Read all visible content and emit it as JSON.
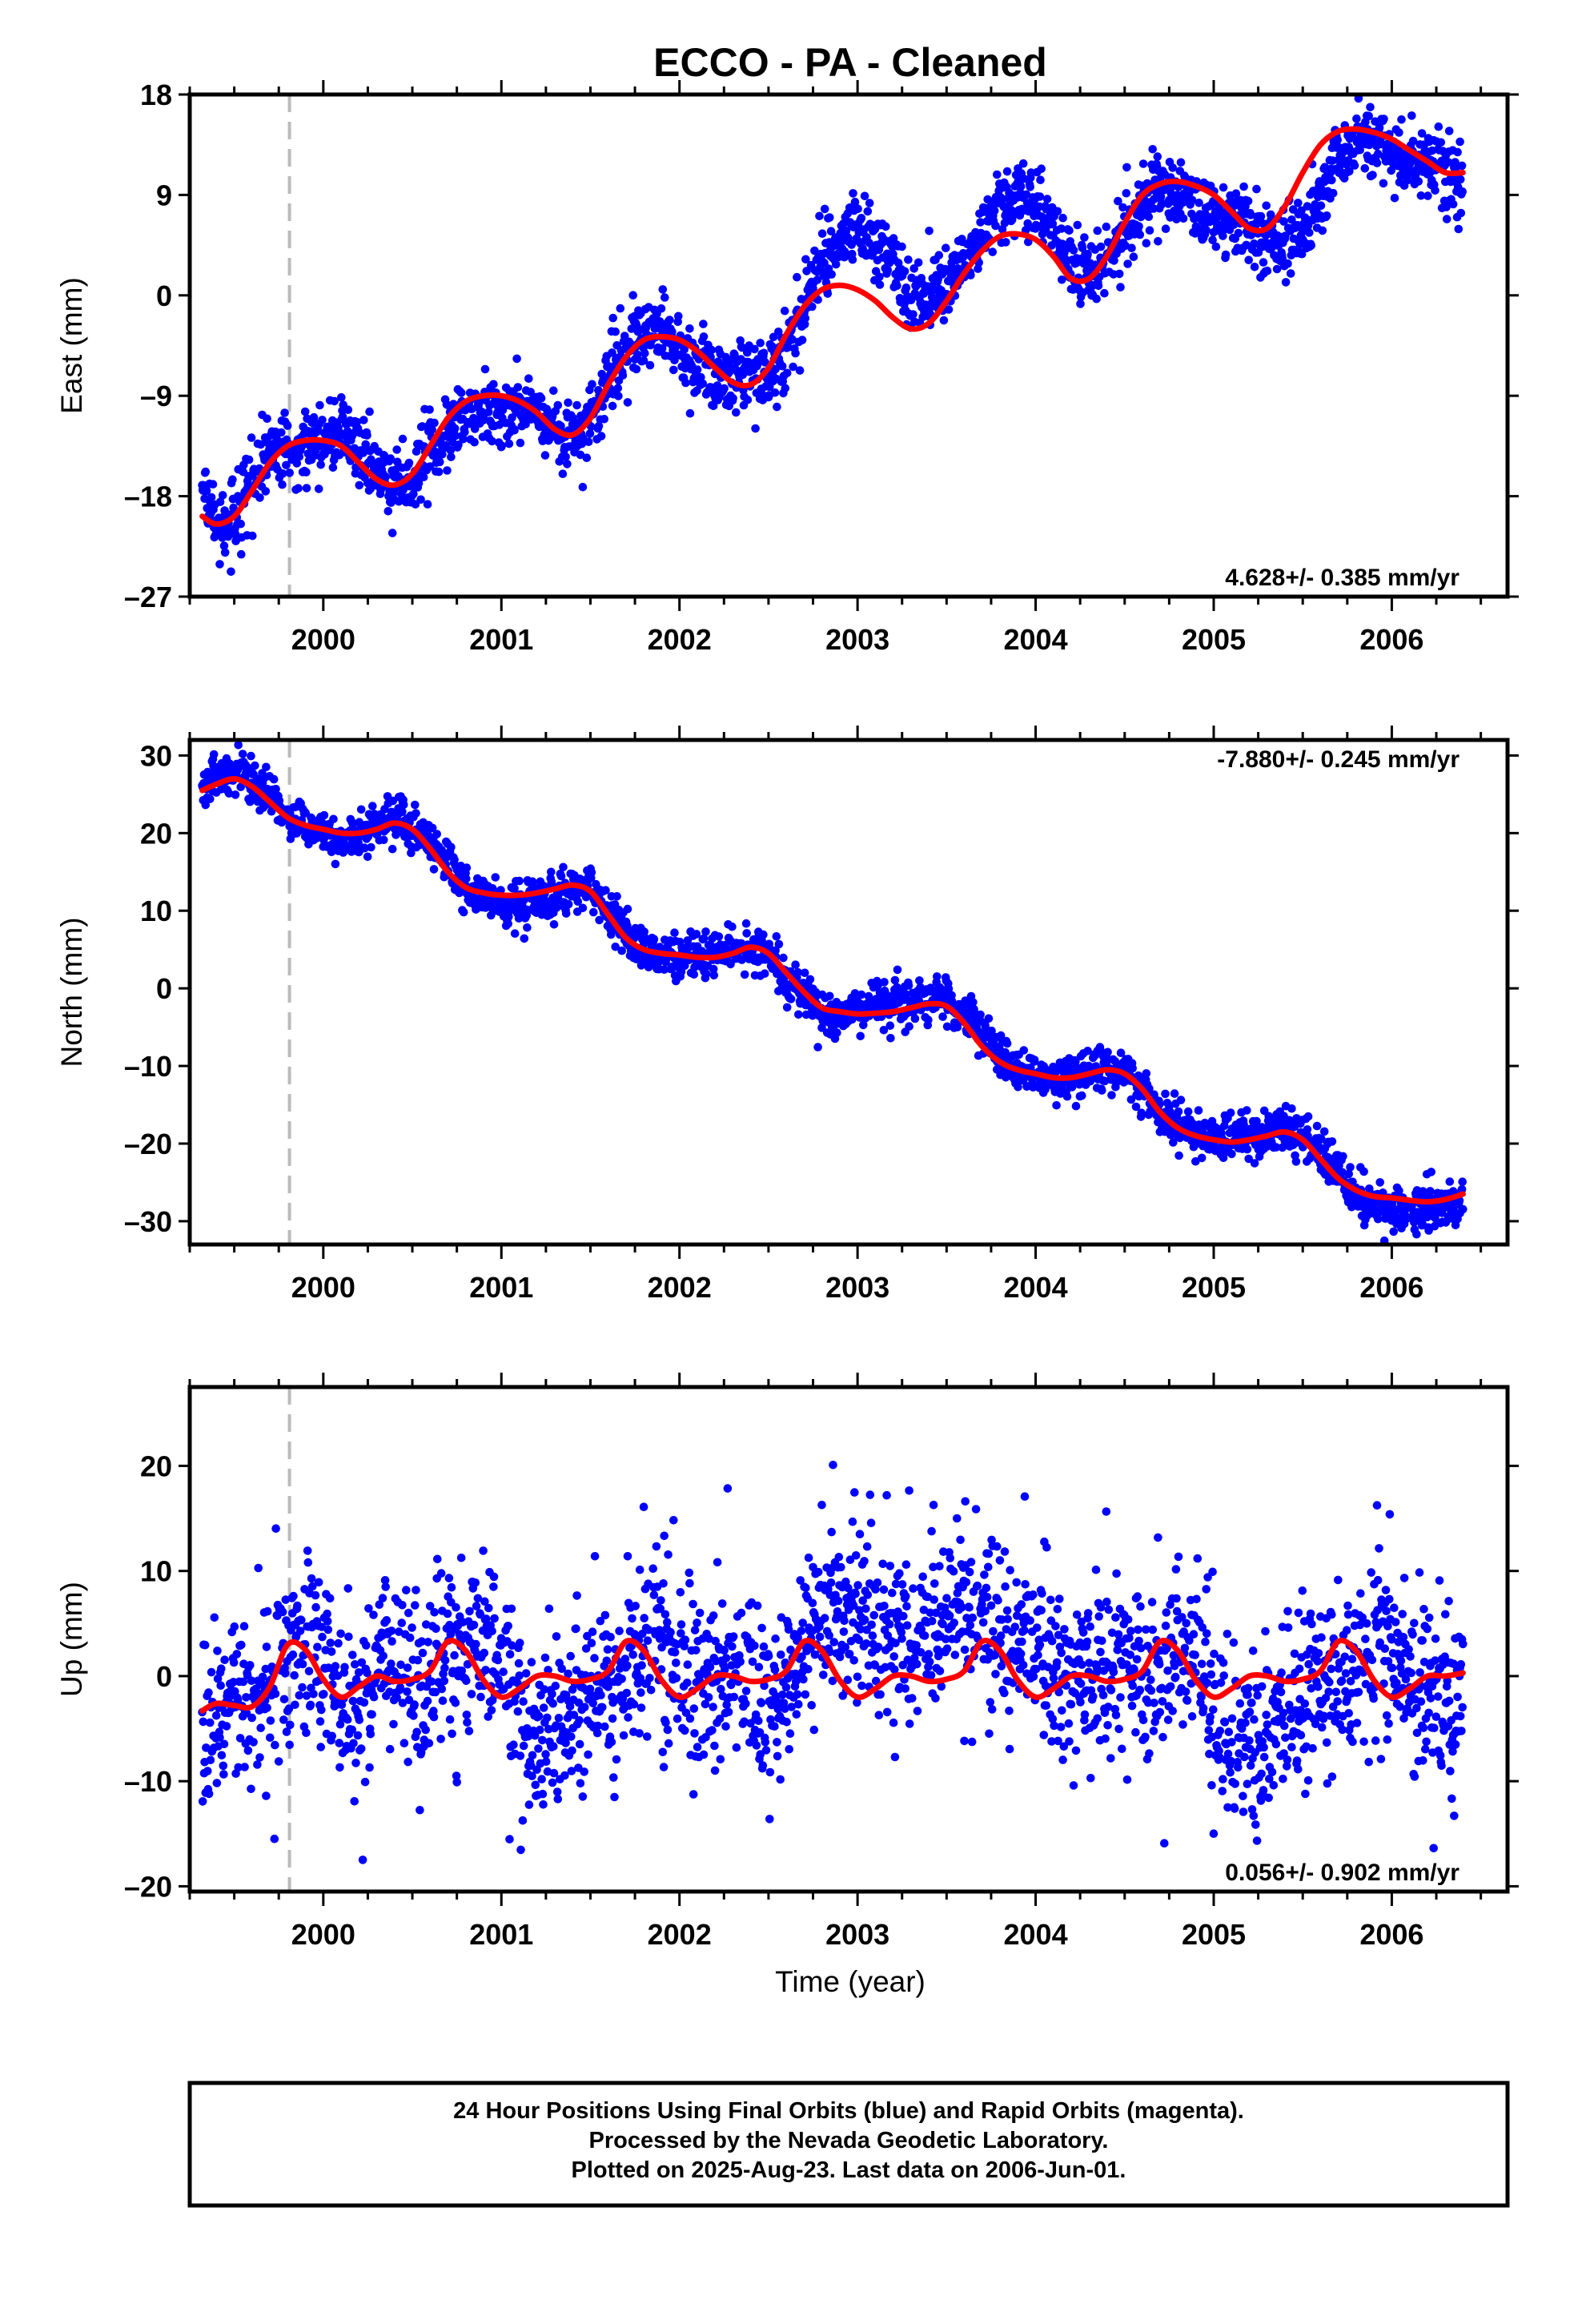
{
  "title": "ECCO  - PA - Cleaned",
  "xlabel": "Time (year)",
  "colors": {
    "points": "#0000ff",
    "fit": "#ff0000",
    "start_marker": "#bbbbbb"
  },
  "footer": {
    "line1": "24 Hour Positions Using Final Orbits (blue) and Rapid Orbits (magenta).",
    "line2": "Processed by the Nevada Geodetic Laboratory.",
    "line3": "Plotted on 2025-Aug-23. Last data on 2006-Jun-01."
  },
  "chart_data": [
    {
      "type": "scatter",
      "component": "east",
      "ylabel": "East (mm)",
      "rate_label": "4.628+/- 0.385 mm/yr",
      "rate_position": "bottom-right",
      "xlim": [
        1999.25,
        2006.65
      ],
      "ylim": [
        -27,
        18
      ],
      "yticks": [
        -27,
        -18,
        -9,
        0,
        9,
        18
      ],
      "xticks": [
        2000,
        2001,
        2002,
        2003,
        2004,
        2005,
        2006
      ],
      "xtick_labels": [
        "2000",
        "2001",
        "2002",
        "2003",
        "2004",
        "2005",
        "2006"
      ],
      "start_marker_x": 1999.81,
      "grid": false,
      "series": [
        {
          "kind": "points",
          "x": [
            1999.32,
            1999.4,
            1999.5,
            1999.6,
            1999.7,
            1999.8,
            1999.9,
            2000.0,
            2000.1,
            2000.2,
            2000.3,
            2000.4,
            2000.5,
            2000.6,
            2000.7,
            2000.8,
            2000.9,
            2001.0,
            2001.1,
            2001.2,
            2001.3,
            2001.4,
            2001.5,
            2001.6,
            2001.7,
            2001.8,
            2001.9,
            2002.0,
            2002.1,
            2002.2,
            2002.3,
            2002.4,
            2002.5,
            2002.6,
            2002.7,
            2002.8,
            2002.9,
            2003.0,
            2003.1,
            2003.2,
            2003.3,
            2003.4,
            2003.5,
            2003.6,
            2003.7,
            2003.8,
            2003.9,
            2004.0,
            2004.1,
            2004.2,
            2004.3,
            2004.4,
            2004.5,
            2004.6,
            2004.7,
            2004.8,
            2004.9,
            2005.0,
            2005.1,
            2005.2,
            2005.3,
            2005.4,
            2005.5,
            2005.6,
            2005.7,
            2005.8,
            2005.9,
            2006.0,
            2006.1,
            2006.2,
            2006.3,
            2006.4
          ],
          "y": [
            -17,
            -21,
            -20,
            -16,
            -14,
            -14,
            -14,
            -13,
            -12,
            -14,
            -16,
            -17,
            -16,
            -14,
            -12,
            -11,
            -10,
            -10,
            -10,
            -11,
            -12,
            -13,
            -11,
            -7,
            -5,
            -3,
            -3,
            -5,
            -6,
            -7,
            -7,
            -7,
            -7,
            -5,
            -1,
            3,
            5,
            6,
            5,
            3,
            0,
            0,
            1,
            3,
            6,
            8,
            9,
            8,
            6,
            3,
            2,
            3,
            6,
            8,
            9,
            9,
            8,
            7,
            7,
            6,
            5,
            5,
            6,
            9,
            12,
            14,
            14,
            13,
            12,
            12,
            11,
            9
          ]
        },
        {
          "kind": "fit_line",
          "x": [
            1999.32,
            1999.4,
            1999.5,
            1999.6,
            1999.7,
            1999.8,
            1999.9,
            2000.0,
            2000.1,
            2000.2,
            2000.3,
            2000.4,
            2000.5,
            2000.6,
            2000.7,
            2000.8,
            2000.9,
            2001.0,
            2001.1,
            2001.2,
            2001.3,
            2001.4,
            2001.5,
            2001.6,
            2001.7,
            2001.8,
            2001.9,
            2002.0,
            2002.1,
            2002.2,
            2002.3,
            2002.4,
            2002.5,
            2002.6,
            2002.7,
            2002.8,
            2002.9,
            2003.0,
            2003.1,
            2003.2,
            2003.3,
            2003.4,
            2003.5,
            2003.6,
            2003.7,
            2003.8,
            2003.9,
            2004.0,
            2004.1,
            2004.2,
            2004.3,
            2004.4,
            2004.5,
            2004.6,
            2004.7,
            2004.8,
            2004.9,
            2005.0,
            2005.1,
            2005.2,
            2005.3,
            2005.4,
            2005.5,
            2005.6,
            2005.7,
            2005.8,
            2005.9,
            2006.0,
            2006.1,
            2006.2,
            2006.3,
            2006.4
          ],
          "y": [
            -19.8,
            -20.5,
            -19.8,
            -17.5,
            -15,
            -13.5,
            -13,
            -13,
            -13.5,
            -15,
            -16.5,
            -17,
            -16,
            -13.5,
            -11,
            -9.5,
            -9,
            -9,
            -9.5,
            -10.5,
            -12,
            -12.5,
            -11,
            -8,
            -5.5,
            -4,
            -3.7,
            -4,
            -5,
            -6.5,
            -7.8,
            -8,
            -6.5,
            -3.5,
            -1,
            0.5,
            0.9,
            0.5,
            -0.5,
            -2,
            -3,
            -2.5,
            -0.5,
            2,
            4,
            5.3,
            5.5,
            5,
            3.5,
            1.5,
            1.5,
            3.5,
            6.5,
            9,
            10,
            10.2,
            9.8,
            9,
            7.5,
            6,
            6,
            8,
            11,
            13.5,
            14.7,
            14.9,
            14.6,
            14,
            13,
            12,
            11,
            11
          ]
        }
      ]
    },
    {
      "type": "scatter",
      "component": "north",
      "ylabel": "North (mm)",
      "rate_label": "-7.880+/- 0.245 mm/yr",
      "rate_position": "top-right",
      "xlim": [
        1999.25,
        2006.65
      ],
      "ylim": [
        -33,
        32
      ],
      "yticks": [
        -30,
        -20,
        -10,
        0,
        10,
        20,
        30
      ],
      "xticks": [
        2000,
        2001,
        2002,
        2003,
        2004,
        2005,
        2006
      ],
      "xtick_labels": [
        "2000",
        "2001",
        "2002",
        "2003",
        "2004",
        "2005",
        "2006"
      ],
      "start_marker_x": 1999.81,
      "grid": false,
      "series": [
        {
          "kind": "points",
          "x": [
            1999.32,
            1999.4,
            1999.5,
            1999.6,
            1999.7,
            1999.8,
            1999.9,
            2000.0,
            2000.1,
            2000.2,
            2000.3,
            2000.4,
            2000.5,
            2000.6,
            2000.7,
            2000.8,
            2000.9,
            2001.0,
            2001.1,
            2001.2,
            2001.3,
            2001.4,
            2001.5,
            2001.6,
            2001.7,
            2001.8,
            2001.9,
            2002.0,
            2002.1,
            2002.2,
            2002.3,
            2002.4,
            2002.5,
            2002.6,
            2002.7,
            2002.8,
            2002.9,
            2003.0,
            2003.1,
            2003.2,
            2003.3,
            2003.4,
            2003.5,
            2003.6,
            2003.7,
            2003.8,
            2003.9,
            2004.0,
            2004.1,
            2004.2,
            2004.3,
            2004.4,
            2004.5,
            2004.6,
            2004.7,
            2004.8,
            2004.9,
            2005.0,
            2005.1,
            2005.2,
            2005.3,
            2005.4,
            2005.5,
            2005.6,
            2005.7,
            2005.8,
            2005.9,
            2006.0,
            2006.1,
            2006.2,
            2006.3,
            2006.4
          ],
          "y": [
            26,
            27,
            28,
            27,
            25,
            22,
            21,
            20,
            19,
            20,
            21,
            22,
            21,
            19,
            16,
            13,
            12,
            11,
            11,
            11,
            12,
            13,
            13,
            10,
            7,
            5,
            4,
            4,
            4,
            4,
            5,
            5,
            4,
            1,
            -1,
            -3,
            -3,
            -3,
            -2,
            -2,
            -2,
            -1,
            -1,
            -3,
            -6,
            -9,
            -11,
            -11,
            -12,
            -11,
            -11,
            -10,
            -11,
            -13,
            -16,
            -18,
            -19,
            -19,
            -19,
            -19,
            -19,
            -18,
            -19,
            -21,
            -24,
            -27,
            -28,
            -28,
            -29,
            -28,
            -28,
            -27
          ]
        },
        {
          "kind": "fit_line",
          "x": [
            1999.32,
            1999.4,
            1999.5,
            1999.6,
            1999.7,
            1999.8,
            1999.9,
            2000.0,
            2000.1,
            2000.2,
            2000.3,
            2000.4,
            2000.5,
            2000.6,
            2000.7,
            2000.8,
            2000.9,
            2001.0,
            2001.1,
            2001.2,
            2001.3,
            2001.4,
            2001.5,
            2001.6,
            2001.7,
            2001.8,
            2001.9,
            2002.0,
            2002.1,
            2002.2,
            2002.3,
            2002.4,
            2002.5,
            2002.6,
            2002.7,
            2002.8,
            2002.9,
            2003.0,
            2003.1,
            2003.2,
            2003.3,
            2003.4,
            2003.5,
            2003.6,
            2003.7,
            2003.8,
            2003.9,
            2004.0,
            2004.1,
            2004.2,
            2004.3,
            2004.4,
            2004.5,
            2004.6,
            2004.7,
            2004.8,
            2004.9,
            2005.0,
            2005.1,
            2005.2,
            2005.3,
            2005.4,
            2005.5,
            2005.6,
            2005.7,
            2005.8,
            2005.9,
            2006.0,
            2006.1,
            2006.2,
            2006.3,
            2006.4
          ],
          "y": [
            25.5,
            26.3,
            27,
            26,
            24,
            22,
            21,
            20.5,
            20,
            20,
            20.5,
            21.3,
            20.5,
            18,
            15,
            13,
            12.3,
            12,
            12,
            12.3,
            12.8,
            13.3,
            12.5,
            9.5,
            6.5,
            5,
            4.5,
            4.3,
            4,
            4,
            4.5,
            5.3,
            4.5,
            2,
            -0.5,
            -2.5,
            -3,
            -3.3,
            -3.2,
            -3,
            -2.5,
            -2,
            -2.3,
            -4.5,
            -7.5,
            -9.5,
            -10.5,
            -11,
            -11.5,
            -11.5,
            -11,
            -10.5,
            -11,
            -13,
            -16,
            -18,
            -19,
            -19.5,
            -19.8,
            -19.5,
            -19,
            -18.5,
            -19.5,
            -22,
            -24.5,
            -26,
            -26.8,
            -27,
            -27.3,
            -27.5,
            -27.2,
            -26.5
          ]
        }
      ]
    },
    {
      "type": "scatter",
      "component": "up",
      "ylabel": "Up (mm)",
      "rate_label": "0.056+/- 0.902 mm/yr",
      "rate_position": "bottom-right",
      "xlim": [
        1999.25,
        2006.65
      ],
      "ylim": [
        -20.5,
        27.5
      ],
      "yticks": [
        -20,
        -10,
        0,
        10,
        20
      ],
      "xticks": [
        2000,
        2001,
        2002,
        2003,
        2004,
        2005,
        2006
      ],
      "xtick_labels": [
        "2000",
        "2001",
        "2002",
        "2003",
        "2004",
        "2005",
        "2006"
      ],
      "start_marker_x": 1999.81,
      "grid": false,
      "series": [
        {
          "kind": "points",
          "x": [
            1999.32,
            1999.4,
            1999.5,
            1999.6,
            1999.7,
            1999.8,
            1999.9,
            2000.0,
            2000.1,
            2000.2,
            2000.3,
            2000.4,
            2000.5,
            2000.6,
            2000.7,
            2000.8,
            2000.9,
            2001.0,
            2001.1,
            2001.2,
            2001.3,
            2001.4,
            2001.5,
            2001.6,
            2001.7,
            2001.8,
            2001.9,
            2002.0,
            2002.1,
            2002.2,
            2002.3,
            2002.4,
            2002.5,
            2002.6,
            2002.7,
            2002.8,
            2002.9,
            2003.0,
            2003.1,
            2003.2,
            2003.3,
            2003.4,
            2003.5,
            2003.6,
            2003.7,
            2003.8,
            2003.9,
            2004.0,
            2004.1,
            2004.2,
            2004.3,
            2004.4,
            2004.5,
            2004.6,
            2004.7,
            2004.8,
            2004.9,
            2005.0,
            2005.1,
            2005.2,
            2005.3,
            2005.4,
            2005.5,
            2005.6,
            2005.7,
            2005.8,
            2005.9,
            2006.0,
            2006.1,
            2006.2,
            2006.3,
            2006.4
          ],
          "y": [
            -5,
            -3,
            -2,
            -2,
            -1,
            2,
            3,
            1,
            -3,
            -4,
            0,
            1,
            -1,
            0,
            2,
            3,
            4,
            1,
            -4,
            -6,
            -5,
            -3,
            -2,
            -2,
            0,
            3,
            4,
            2,
            -1,
            -1,
            1,
            -1,
            -4,
            -1,
            3,
            6,
            7,
            6,
            5,
            3,
            2,
            4,
            5,
            6,
            6,
            5,
            4,
            3,
            1,
            -1,
            0,
            1,
            1,
            0,
            0,
            2,
            1,
            -4,
            -7,
            -6,
            -5,
            -4,
            -2,
            -1,
            1,
            2,
            3,
            2,
            0,
            -1,
            -2,
            -3
          ]
        },
        {
          "kind": "fit_line",
          "x": [
            1999.32,
            1999.4,
            1999.5,
            1999.6,
            1999.7,
            1999.8,
            1999.9,
            2000.0,
            2000.1,
            2000.2,
            2000.3,
            2000.4,
            2000.5,
            2000.6,
            2000.7,
            2000.8,
            2000.9,
            2001.0,
            2001.1,
            2001.2,
            2001.3,
            2001.4,
            2001.5,
            2001.6,
            2001.7,
            2001.8,
            2001.9,
            2002.0,
            2002.1,
            2002.2,
            2002.3,
            2002.4,
            2002.5,
            2002.6,
            2002.7,
            2002.8,
            2002.9,
            2003.0,
            2003.1,
            2003.2,
            2003.3,
            2003.4,
            2003.5,
            2003.6,
            2003.7,
            2003.8,
            2003.9,
            2004.0,
            2004.1,
            2004.2,
            2004.3,
            2004.4,
            2004.5,
            2004.6,
            2004.7,
            2004.8,
            2004.9,
            2005.0,
            2005.1,
            2005.2,
            2005.3,
            2005.4,
            2005.5,
            2005.6,
            2005.7,
            2005.8,
            2005.9,
            2006.0,
            2006.1,
            2006.2,
            2006.3,
            2006.4
          ],
          "y": [
            -3.3,
            -2.6,
            -2.8,
            -2.9,
            -1,
            3,
            2.5,
            -0.3,
            -2,
            -1,
            0,
            -0.5,
            -0.3,
            0.5,
            3.3,
            2.4,
            -0.4,
            -2,
            -1.2,
            0,
            0,
            -0.5,
            -0.3,
            0.5,
            3.3,
            2.4,
            -0.4,
            -2,
            -1.2,
            0,
            0,
            -0.5,
            -0.3,
            0.5,
            3.3,
            2.4,
            -0.4,
            -2,
            -1.2,
            0,
            0,
            -0.5,
            -0.3,
            0.5,
            3.3,
            2.4,
            -0.4,
            -2,
            -1.2,
            0,
            0,
            -0.5,
            -0.3,
            0.5,
            3.3,
            2.4,
            -0.4,
            -2,
            -1.2,
            0,
            0,
            -0.5,
            -0.3,
            0.5,
            3.3,
            2.4,
            -0.4,
            -2,
            -1.2,
            0,
            0,
            0.3
          ]
        }
      ]
    }
  ]
}
